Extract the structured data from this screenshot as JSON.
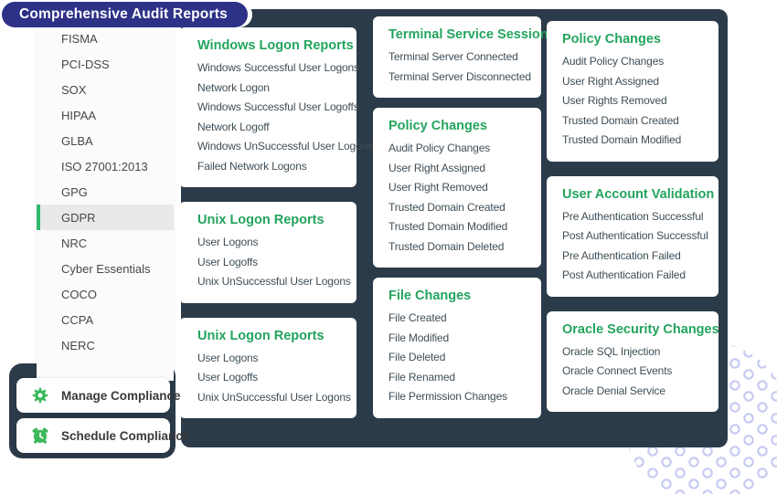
{
  "header": {
    "title": "Comprehensive Audit Reports"
  },
  "sidebar": {
    "items": [
      {
        "label": "FISMA",
        "active": false
      },
      {
        "label": "PCI-DSS",
        "active": false
      },
      {
        "label": "SOX",
        "active": false
      },
      {
        "label": "HIPAA",
        "active": false
      },
      {
        "label": "GLBA",
        "active": false
      },
      {
        "label": "ISO 27001:2013",
        "active": false
      },
      {
        "label": "GPG",
        "active": false
      },
      {
        "label": "GDPR",
        "active": true
      },
      {
        "label": "NRC",
        "active": false
      },
      {
        "label": "Cyber Essentials",
        "active": false
      },
      {
        "label": "COCO",
        "active": false
      },
      {
        "label": "CCPA",
        "active": false
      },
      {
        "label": "NERC",
        "active": false
      }
    ]
  },
  "actions": [
    {
      "label": "Manage Compliance",
      "icon": "gear-icon"
    },
    {
      "label": "Schedule Compliance",
      "icon": "alarm-clock-icon"
    }
  ],
  "columns": [
    {
      "cards": [
        {
          "title": "Windows Logon Reports",
          "items": [
            "Windows Successful User Logons",
            "Network Logon",
            "Windows Successful User Logoffs",
            "Network Logoff",
            "Windows UnSuccessful User Logons",
            "Failed Network Logons"
          ]
        },
        {
          "title": "Unix Logon Reports",
          "items": [
            "User Logons",
            "User Logoffs",
            "Unix UnSuccessful User Logons"
          ]
        },
        {
          "title": "Unix Logon Reports",
          "items": [
            "User Logons",
            "User Logoffs",
            "Unix UnSuccessful User Logons"
          ]
        }
      ]
    },
    {
      "cards": [
        {
          "title": "Terminal Service Session",
          "items": [
            "Terminal Server Connected",
            "Terminal Server Disconnected"
          ]
        },
        {
          "title": "Policy Changes",
          "items": [
            "Audit Policy Changes",
            "User Right Assigned",
            "User Right Removed",
            "Trusted Domain Created",
            "Trusted Domain Modified",
            "Trusted Domain Deleted"
          ]
        },
        {
          "title": "File Changes",
          "items": [
            "File Created",
            "File Modified",
            "File Deleted",
            "File Renamed",
            "File Permission Changes"
          ]
        }
      ]
    },
    {
      "cards": [
        {
          "title": "Policy Changes",
          "items": [
            "Audit Policy Changes",
            "User Right Assigned",
            "User Rights Removed",
            "Trusted Domain Created",
            "Trusted Domain Modified"
          ]
        },
        {
          "title": "User Account Validation",
          "items": [
            "Pre Authentication Successful",
            "Post Authentication Successful",
            "Pre Authentication Failed",
            "Post Authentication Failed"
          ]
        },
        {
          "title": "Oracle Security Changes",
          "items": [
            "Oracle SQL Injection",
            "Oracle Connect Events",
            "Oracle Denial Service"
          ]
        }
      ]
    }
  ],
  "colors": {
    "pill-indigo": "#2e3287",
    "panel-dark": "#2c3b49",
    "title-green": "#23a45d",
    "accent-green-bright": "#2fba6c",
    "icon-green": "#3cb95b",
    "pattern-lavender": "#c7cbf2"
  }
}
